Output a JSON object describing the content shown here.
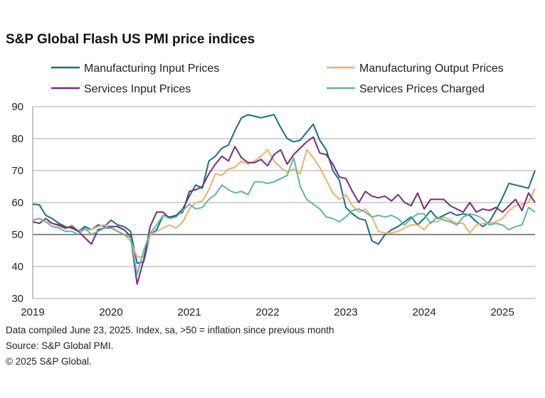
{
  "chart_data": {
    "type": "line",
    "title": "S&P Global Flash US PMI price indices",
    "xlabel": "",
    "ylabel": "",
    "ylim": [
      30,
      90
    ],
    "yticks": [
      "30",
      "40",
      "50",
      "60",
      "70",
      "80",
      "90"
    ],
    "xticks": [
      "2019",
      "2020",
      "2021",
      "2022",
      "2023",
      "2024",
      "2025"
    ],
    "x_start": "2019-01",
    "x_end": "2025-06",
    "frequency": "monthly",
    "grid": true,
    "reference_line": 50,
    "legend_position": "top",
    "series": [
      {
        "name": "Manufacturing Input Prices",
        "color": "#176f86",
        "values": [
          59.5,
          59.3,
          56,
          55,
          53.5,
          52.5,
          52,
          51,
          52.5,
          51.5,
          53,
          52.5,
          54.5,
          53,
          52.5,
          51,
          41,
          41.5,
          50,
          51.5,
          56,
          55.5,
          56,
          58,
          62,
          65.5,
          64.5,
          73,
          74.5,
          77,
          78,
          82.5,
          86.5,
          87.5,
          87,
          86.5,
          87,
          87.5,
          83.5,
          80,
          79,
          79.5,
          82,
          84.5,
          79.5,
          76.5,
          70,
          67,
          58.5,
          56.5,
          55,
          54.5,
          48,
          47,
          50,
          51.5,
          52.5,
          54,
          55.5,
          53,
          55,
          57.5,
          55,
          56,
          57,
          56,
          56.5,
          56,
          54,
          52.5,
          54,
          57.5,
          61.5,
          66,
          65.5,
          65,
          64.5,
          70
        ]
      },
      {
        "name": "Manufacturing Output Prices",
        "color": "#f0b06a",
        "values": [
          54.5,
          55,
          54,
          53.5,
          52.5,
          52,
          53,
          51,
          51.5,
          51.5,
          52.5,
          53,
          52.5,
          51,
          50,
          48,
          43,
          43,
          50,
          51,
          52,
          53,
          52,
          54,
          58,
          60,
          60.5,
          64,
          69,
          68.5,
          70.5,
          71,
          73,
          72,
          73,
          74.5,
          76.5,
          73,
          71,
          69.5,
          70.5,
          69,
          76.5,
          74,
          71,
          67,
          63,
          61,
          62.5,
          59,
          57,
          58,
          55.5,
          51,
          50.5,
          50.5,
          51,
          52,
          53,
          53,
          51.5,
          54,
          54,
          55.5,
          54.5,
          53.5,
          53.5,
          50.5,
          53,
          53.5,
          53.5,
          54,
          55,
          57.5,
          59,
          59.5,
          60,
          64.5
        ]
      },
      {
        "name": "Services Input Prices",
        "color": "#7b2a80",
        "values": [
          54,
          53.5,
          55,
          53.5,
          53,
          52,
          52.5,
          51,
          49,
          47,
          51.5,
          52,
          52.5,
          52.5,
          51.5,
          49.5,
          34.5,
          42,
          52.5,
          57,
          57,
          55,
          56,
          57,
          63.5,
          64,
          65,
          69,
          72,
          74.5,
          73,
          77.5,
          74,
          72.5,
          72.5,
          73.5,
          71.5,
          75,
          76.5,
          72,
          75,
          77,
          79,
          80.5,
          75.5,
          75,
          72,
          68,
          67.5,
          63.5,
          60,
          63.5,
          62,
          61.5,
          62,
          60.5,
          62.5,
          60,
          59,
          63,
          58,
          61,
          61,
          61,
          59,
          58,
          57,
          60,
          57,
          58,
          57.5,
          58.5,
          57,
          59,
          61,
          57.5,
          63,
          60
        ]
      },
      {
        "name": "Services Prices Charged",
        "color": "#5cb9a0",
        "values": [
          54.5,
          55,
          54,
          52.5,
          52,
          51,
          51,
          50,
          52,
          50,
          51,
          52,
          52,
          51,
          50,
          49,
          37.5,
          45,
          50.5,
          53,
          56,
          55,
          55.5,
          57.5,
          59.5,
          58,
          58.5,
          61,
          62.5,
          65.5,
          64,
          63,
          63.5,
          62.5,
          66.5,
          66.5,
          66,
          66.5,
          67.5,
          68.5,
          74,
          65,
          61,
          59.5,
          58,
          55.5,
          55,
          54,
          55.5,
          57.5,
          58,
          57,
          55.5,
          56,
          55.5,
          56,
          55,
          53,
          55,
          56.5,
          56.5,
          53.5,
          55.5,
          54.5,
          54,
          53,
          55.5,
          56.5,
          56,
          55,
          53,
          53.5,
          53,
          51.5,
          52.5,
          53,
          58.5,
          57
        ]
      }
    ]
  },
  "footer": {
    "note": "Data compiled June 23, 2025. Index, sa, >50 = inflation since previous month",
    "source": "Source: S&P Global PMI.",
    "copyright": "© 2025 S&P Global."
  }
}
